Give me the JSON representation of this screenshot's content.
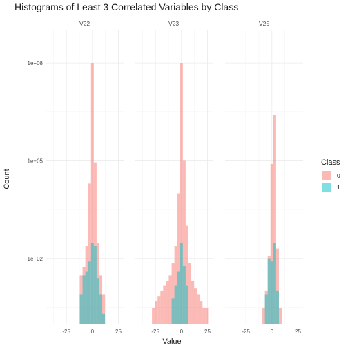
{
  "chart_data": {
    "type": "bar",
    "title": "Histograms of Least 3 Correlated Variables by Class",
    "xlabel": "Value",
    "ylabel": "Count",
    "y_scale": "log10",
    "ylim": [
      1,
      1000000000
    ],
    "y_ticks": [
      100,
      100000,
      100000000
    ],
    "y_tick_labels": [
      "1e+02",
      "1e+05",
      "1e+08"
    ],
    "xlim": [
      -45,
      30
    ],
    "x_ticks": [
      -25,
      0,
      25
    ],
    "x_tick_labels": [
      "-25",
      "0",
      "25"
    ],
    "bin_width": 2.7,
    "legend": {
      "title": "Class",
      "position": "right",
      "entries": [
        "0",
        "1"
      ]
    },
    "colors": {
      "0": "#F8766D",
      "1": "#00BFC4"
    },
    "grid": true,
    "facets": [
      {
        "name": "V22",
        "series": [
          {
            "name": "0",
            "bin_centers": [
              -10.8,
              -8.1,
              -5.4,
              -2.7,
              0,
              2.7,
              5.4,
              8.1,
              10.8
            ],
            "counts": [
              30,
              55,
              250,
              20000,
              100000000,
              90000,
              300,
              30,
              8
            ]
          },
          {
            "name": "1",
            "bin_centers": [
              -10.8,
              -8.1,
              -5.4,
              -2.7,
              0,
              2.7,
              5.4,
              8.1,
              10.8
            ],
            "counts": [
              8,
              30,
              40,
              80,
              300,
              250,
              25,
              8,
              2
            ]
          }
        ]
      },
      {
        "name": "V23",
        "series": [
          {
            "name": "0",
            "bin_centers": [
              -27,
              -24.3,
              -21.6,
              -18.9,
              -16.2,
              -13.5,
              -10.8,
              -8.1,
              -5.4,
              -2.7,
              0,
              2.7,
              5.4,
              8.1,
              10.8,
              13.5,
              16.2,
              18.9,
              21.6,
              24.3
            ],
            "counts": [
              3,
              5,
              7,
              10,
              15,
              20,
              30,
              70,
              250,
              10000,
              100000000,
              100000,
              1000,
              70,
              20,
              12,
              8,
              5,
              3,
              3
            ]
          },
          {
            "name": "1",
            "bin_centers": [
              -8.1,
              -5.4,
              -2.7,
              0,
              2.7,
              5.4
            ],
            "counts": [
              6,
              15,
              40,
              300,
              60,
              15
            ]
          }
        ]
      },
      {
        "name": "V25",
        "series": [
          {
            "name": "0",
            "bin_centers": [
              -8.1,
              -5.4,
              -2.7,
              0,
              2.7,
              5.4,
              8.1
            ],
            "counts": [
              3,
              10,
              120,
              80000,
              2500000,
              200,
              3
            ]
          },
          {
            "name": "1",
            "bin_centers": [
              -5.4,
              -2.7,
              0,
              2.7,
              5.4
            ],
            "counts": [
              8,
              100,
              80,
              300,
              10
            ]
          }
        ]
      }
    ]
  }
}
